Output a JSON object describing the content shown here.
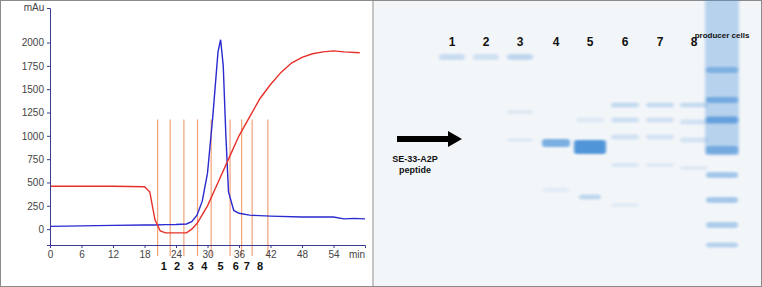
{
  "chart_data": {
    "type": "line",
    "y_label": "mAu",
    "x_label": "min",
    "xlim": [
      0,
      60
    ],
    "xticks": [
      0,
      6,
      12,
      18,
      24,
      30,
      36,
      42,
      48,
      54
    ],
    "ylim": [
      -170,
      2370
    ],
    "yticks": [
      0,
      250,
      500,
      750,
      1000,
      1250,
      1500,
      1750,
      2000
    ],
    "grid": false,
    "series": [
      {
        "color": "#2a2ad0",
        "x": [
          0,
          6,
          12,
          18,
          20,
          22,
          24,
          26,
          27,
          28,
          29,
          30,
          31,
          32,
          32.5,
          33,
          33.5,
          34,
          35,
          36,
          38,
          42,
          48,
          54,
          56,
          58,
          60
        ],
        "values": [
          30,
          35,
          40,
          45,
          45,
          48,
          50,
          55,
          80,
          150,
          300,
          600,
          1200,
          1900,
          2030,
          1750,
          1000,
          400,
          200,
          170,
          150,
          140,
          130,
          130,
          110,
          115,
          110
        ]
      },
      {
        "color": "#e8302a",
        "x": [
          0,
          6,
          12,
          18,
          19,
          20,
          21,
          22,
          24,
          26,
          27,
          28,
          30,
          32,
          34,
          36,
          38,
          40,
          42,
          44,
          46,
          48,
          50,
          52,
          54,
          56,
          59
        ],
        "values": [
          460,
          460,
          460,
          455,
          400,
          100,
          -20,
          -40,
          -40,
          -40,
          0,
          60,
          250,
          500,
          750,
          1000,
          1200,
          1400,
          1550,
          1680,
          1780,
          1840,
          1880,
          1900,
          1910,
          1900,
          1890
        ]
      }
    ],
    "fractions": {
      "labels": [
        "1",
        "2",
        "3",
        "4",
        "5",
        "6",
        "7",
        "8"
      ],
      "bounds": [
        20.5,
        22.9,
        25.5,
        28.1,
        30.7,
        34.3,
        36.5,
        38.5,
        41.5
      ]
    }
  },
  "gel": {
    "lane_labels": [
      "1",
      "2",
      "3",
      "4",
      "5",
      "6",
      "7",
      "8",
      "producer cells"
    ],
    "marker_label": [
      "SE-33-A2P",
      "peptide"
    ]
  }
}
